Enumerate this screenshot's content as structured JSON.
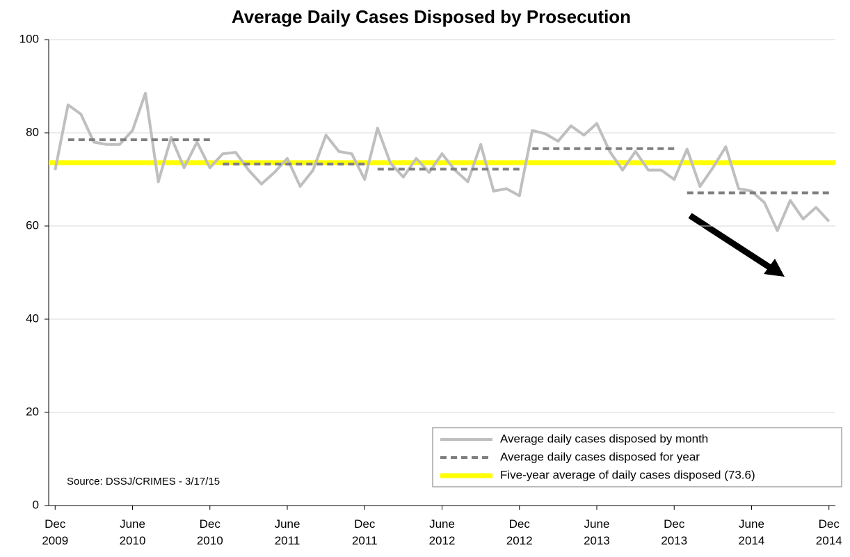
{
  "chart_data": {
    "type": "line",
    "title": "Average Daily Cases Disposed by Prosecution",
    "annotation": "Source: DSSJ/CRIMES - 3/17/15",
    "categories": [
      "Dec 2009",
      null,
      null,
      null,
      null,
      null,
      "June 2010",
      null,
      null,
      null,
      null,
      null,
      "Dec 2010",
      null,
      null,
      null,
      null,
      null,
      "June 2011",
      null,
      null,
      null,
      null,
      null,
      "Dec 2011",
      null,
      null,
      null,
      null,
      null,
      "June 2012",
      null,
      null,
      null,
      null,
      null,
      "Dec 2012",
      null,
      null,
      null,
      null,
      null,
      "June 2013",
      null,
      null,
      null,
      null,
      null,
      "Dec 2013",
      null,
      null,
      null,
      null,
      null,
      "June 2014",
      null,
      null,
      null,
      null,
      null,
      "Dec 2014"
    ],
    "series": [
      {
        "name": "Average daily cases disposed by month",
        "color": "#bfbfbf",
        "values": [
          72,
          86,
          84,
          78,
          77.5,
          77.5,
          80.5,
          88.5,
          69.5,
          79,
          72.5,
          78,
          72.5,
          75.5,
          75.8,
          72,
          69,
          71.5,
          74.5,
          68.5,
          72,
          79.5,
          76,
          75.5,
          70,
          81,
          73.5,
          70.5,
          74.5,
          71.5,
          75.5,
          72,
          69.5,
          77.5,
          67.5,
          68,
          66.5,
          80.5,
          79.8,
          78.2,
          81.5,
          79.5,
          82,
          76,
          72,
          76,
          72,
          72,
          70,
          76.5,
          68.5,
          72.5,
          77,
          68,
          67.5,
          65,
          59,
          65.5,
          61.5,
          64,
          61
        ]
      },
      {
        "name": "Average daily cases disposed for year",
        "color": "#7f7f7f",
        "dashed": true,
        "values": [
          null,
          78.5,
          78.5,
          78.5,
          78.5,
          78.5,
          78.5,
          78.5,
          78.5,
          78.5,
          78.5,
          78.5,
          78.5,
          73.3,
          73.3,
          73.3,
          73.3,
          73.3,
          73.3,
          73.3,
          73.3,
          73.3,
          73.3,
          73.3,
          73.3,
          72.2,
          72.2,
          72.2,
          72.2,
          72.2,
          72.2,
          72.2,
          72.2,
          72.2,
          72.2,
          72.2,
          72.2,
          76.6,
          76.6,
          76.6,
          76.6,
          76.6,
          76.6,
          76.6,
          76.6,
          76.6,
          76.6,
          76.6,
          76.6,
          67.1,
          67.1,
          67.1,
          67.1,
          67.1,
          67.1,
          67.1,
          67.1,
          67.1,
          67.1,
          67.1,
          67.1
        ]
      }
    ],
    "reference": {
      "name": "Five-year average of daily cases disposed (73.6)",
      "value": 73.6,
      "color": "#ffff00"
    },
    "ylim": [
      0,
      100
    ],
    "yticks": [
      0,
      20,
      40,
      60,
      80,
      100
    ],
    "grid": true
  }
}
